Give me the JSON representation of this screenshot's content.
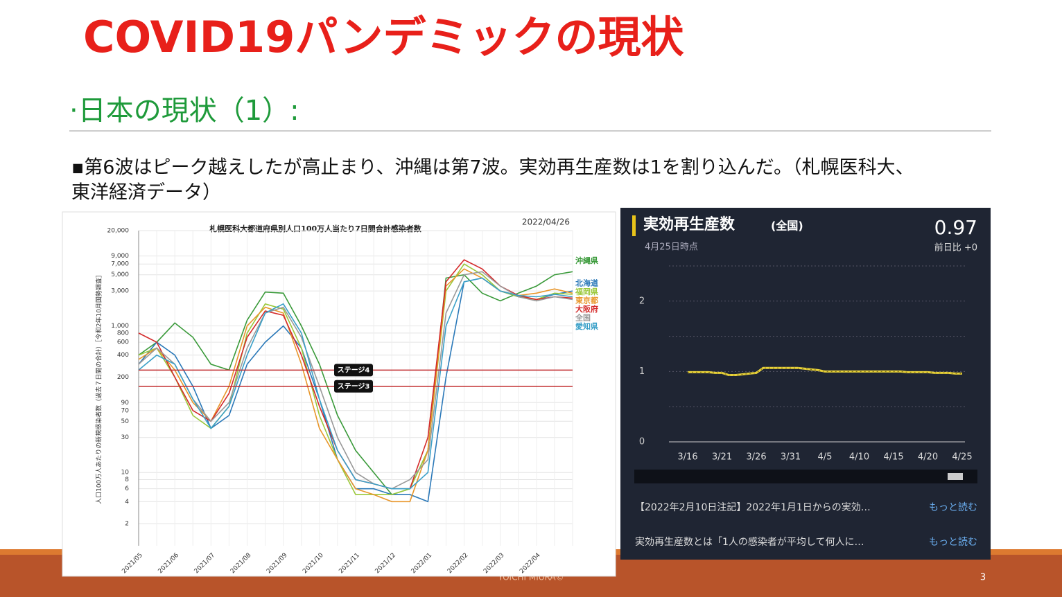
{
  "slide": {
    "title": "COVID19パンデミックの現状",
    "subtitle": "·日本の現状（1）:",
    "bullet": [
      "▪第6波はピーク越えしたが高止まり、沖縄は第7波。実効再生産数は1を割り込んだ。（札幌医科大、",
      "東洋経済データ）"
    ],
    "footer": "YOICHI MIURA©",
    "page_number": "3"
  },
  "chart_data": [
    {
      "type": "line",
      "title": "札幌医科大都道府県別人口100万人当たり7日間合計感染者数",
      "date": "2022/04/26",
      "y_label": "人口100万人あたりの新規感染者数（過去７日間の合計）［令和2年10月国勢調査］",
      "log_scale": true,
      "ylim": [
        1,
        20000
      ],
      "yticks": [
        {
          "value": 20000,
          "label": "20,000"
        },
        {
          "value": 9000,
          "label": "9,000"
        },
        {
          "value": 7000,
          "label": "7,000"
        },
        {
          "value": 5000,
          "label": "5,000"
        },
        {
          "value": 3000,
          "label": "3,000"
        },
        {
          "value": 1000,
          "label": "1,000"
        },
        800,
        600,
        400,
        200,
        90,
        70,
        50,
        30,
        10,
        8,
        6,
        4,
        2
      ],
      "grid": true,
      "categories": [
        "2021/05",
        null,
        "2021/06",
        null,
        "2021/07",
        null,
        "2021/08",
        null,
        "2021/09",
        null,
        "2021/10",
        null,
        "2021/11",
        null,
        "2021/12",
        null,
        "2022/01",
        null,
        "2022/02",
        null,
        "2022/03",
        null,
        "2022/04",
        null,
        null
      ],
      "reference_lines": [
        {
          "label": "ステージ4",
          "value": 250
        },
        {
          "label": "ステージ3",
          "value": 150
        }
      ],
      "series": [
        {
          "name": "沖縄県",
          "color": "#3a9a3a",
          "values": [
            400,
            600,
            1100,
            700,
            300,
            250,
            1200,
            2900,
            2800,
            1000,
            300,
            60,
            20,
            10,
            5,
            6,
            20,
            4500,
            5000,
            2800,
            2200,
            2800,
            3500,
            5000,
            5500
          ]
        },
        {
          "name": "北海道",
          "color": "#2a78b8",
          "values": [
            300,
            600,
            400,
            150,
            40,
            60,
            300,
            600,
            1000,
            500,
            100,
            15,
            6,
            6,
            5,
            5,
            4,
            200,
            4000,
            4500,
            3000,
            2500,
            2300,
            2700,
            3000
          ]
        },
        {
          "name": "福岡県",
          "color": "#9ac83a",
          "values": [
            400,
            500,
            200,
            60,
            40,
            80,
            800,
            2000,
            1700,
            500,
            60,
            15,
            5,
            5,
            5,
            6,
            20,
            3000,
            7000,
            5000,
            3000,
            2500,
            2300,
            2800,
            2700
          ]
        },
        {
          "name": "東京都",
          "color": "#e8962a",
          "values": [
            350,
            500,
            250,
            90,
            50,
            150,
            1000,
            1800,
            1500,
            300,
            40,
            15,
            6,
            5,
            4,
            4,
            20,
            3500,
            6000,
            4500,
            3000,
            2600,
            2800,
            3200,
            2800
          ]
        },
        {
          "name": "大阪府",
          "color": "#d42a2a",
          "values": [
            800,
            600,
            200,
            70,
            50,
            120,
            700,
            1600,
            1400,
            400,
            80,
            20,
            8,
            7,
            6,
            6,
            30,
            4000,
            8000,
            6000,
            3500,
            2600,
            2300,
            2500,
            2400
          ]
        },
        {
          "name": "全国",
          "color": "#999999",
          "values": [
            300,
            500,
            300,
            100,
            50,
            90,
            500,
            1500,
            1800,
            700,
            150,
            30,
            10,
            7,
            6,
            8,
            15,
            1500,
            5000,
            5500,
            3500,
            2500,
            2200,
            2500,
            2300
          ]
        },
        {
          "name": "愛知県",
          "color": "#3aa0c8",
          "values": [
            250,
            400,
            300,
            100,
            40,
            80,
            400,
            1500,
            2000,
            800,
            100,
            20,
            8,
            7,
            6,
            6,
            10,
            1000,
            4000,
            4500,
            3000,
            2600,
            2500,
            2700,
            2500
          ]
        }
      ]
    },
    {
      "type": "line",
      "title": "実効再生産数",
      "scope": "(全国)",
      "as_of": "4月25日時点",
      "latest": "0.97",
      "change": "前日比 +0",
      "ylim": [
        0,
        2.5
      ],
      "yticks": [
        0,
        1,
        2
      ],
      "minor_yticks": [
        0.5,
        1.5,
        2.5
      ],
      "grid": true,
      "color": "#e8d23a",
      "categories": [
        "3/16",
        null,
        null,
        null,
        null,
        "3/21",
        null,
        null,
        null,
        null,
        "3/26",
        null,
        null,
        null,
        null,
        "3/31",
        null,
        null,
        null,
        null,
        "4/5",
        null,
        null,
        null,
        null,
        "4/10",
        null,
        null,
        null,
        null,
        "4/15",
        null,
        null,
        null,
        null,
        "4/20",
        null,
        null,
        null,
        null,
        "4/25"
      ],
      "values": [
        0.99,
        0.99,
        0.99,
        0.99,
        0.98,
        0.98,
        0.95,
        0.95,
        0.96,
        0.97,
        0.98,
        1.05,
        1.05,
        1.05,
        1.05,
        1.05,
        1.05,
        1.04,
        1.03,
        1.02,
        1.0,
        1.0,
        1.0,
        1.0,
        1.0,
        1.0,
        1.0,
        1.0,
        1.0,
        1.0,
        1.0,
        1.0,
        0.99,
        0.99,
        0.99,
        0.99,
        0.98,
        0.98,
        0.98,
        0.97,
        0.97
      ],
      "notes": [
        {
          "text": "【2022年2月10日注記】2022年1月1日からの実効…",
          "link": "もっと読む"
        },
        {
          "text": "実効再生産数とは「1人の感染者が平均して何人に…",
          "link": "もっと読む"
        }
      ]
    }
  ]
}
